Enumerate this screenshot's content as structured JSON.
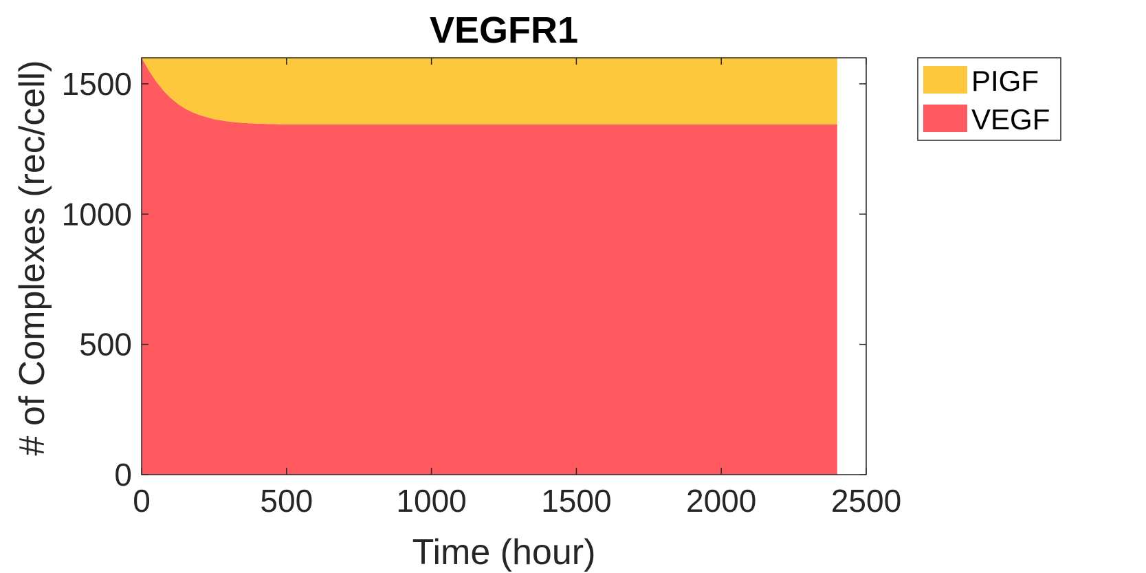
{
  "chart_data": {
    "type": "area",
    "stacked": true,
    "title": "VEGFR1",
    "xlabel": "Time (hour)",
    "ylabel": "# of Complexes (rec/cell)",
    "xlim": [
      0,
      2500
    ],
    "ylim": [
      0,
      1600
    ],
    "xticks": [
      "0",
      "500",
      "1000",
      "1500",
      "2000",
      "2500"
    ],
    "yticks": [
      "0",
      "500",
      "1000",
      "1500"
    ],
    "grid": false,
    "legend_position": "outside-top-right",
    "x": [
      0,
      25,
      50,
      75,
      100,
      125,
      150,
      175,
      200,
      250,
      300,
      350,
      400,
      500,
      600,
      800,
      1000,
      1500,
      2000,
      2400
    ],
    "series": [
      {
        "name": "VEGF",
        "color": "#ff5a5f",
        "values": [
          1600,
          1551,
          1509,
          1474,
          1446,
          1423,
          1405,
          1391,
          1380,
          1364,
          1355,
          1350,
          1347,
          1344,
          1344,
          1344,
          1344,
          1344,
          1344,
          1344
        ]
      },
      {
        "name": "PlGF",
        "color": "#fdc83d",
        "values": [
          0,
          49,
          91,
          126,
          154,
          177,
          195,
          209,
          220,
          236,
          245,
          250,
          253,
          256,
          256,
          256,
          256,
          256,
          256,
          256
        ]
      }
    ],
    "legend": [
      {
        "label": "PIGF",
        "color": "#fdc83d"
      },
      {
        "label": "VEGF",
        "color": "#ff5a5f"
      }
    ]
  }
}
